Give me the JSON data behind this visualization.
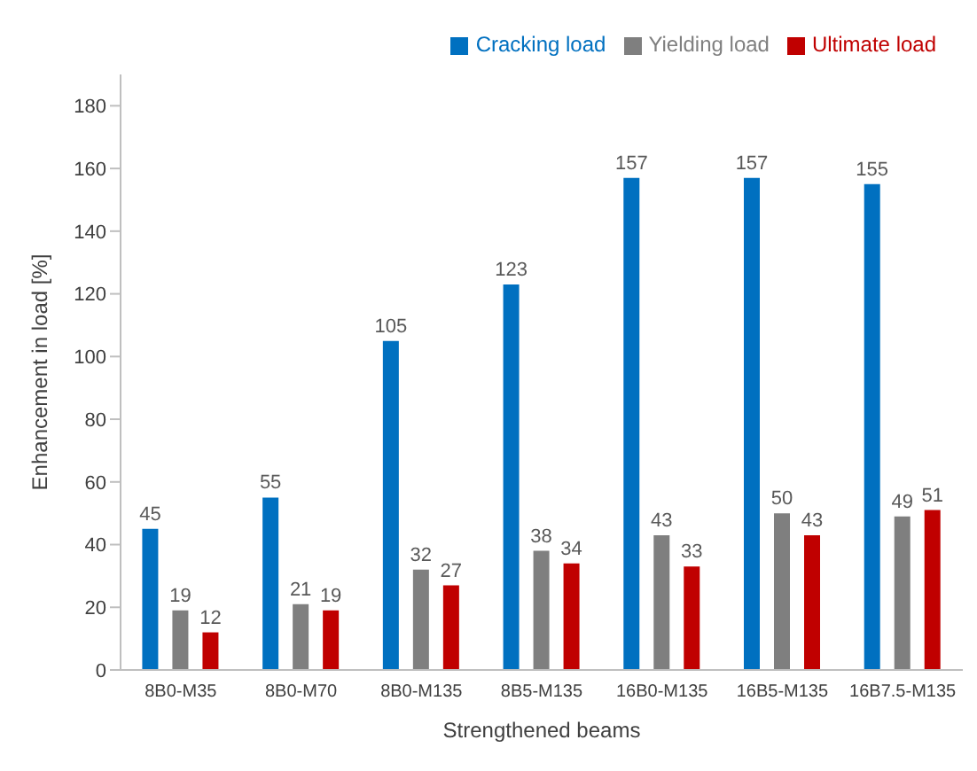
{
  "chart_data": {
    "type": "bar",
    "xlabel": "Strengthened beams",
    "ylabel": "Enhancement in load [%]",
    "categories": [
      "8B0-M35",
      "8B0-M70",
      "8B0-M135",
      "8B5-M135",
      "16B0-M135",
      "16B5-M135",
      "16B7.5-M135"
    ],
    "series": [
      {
        "name": "Cracking load",
        "color": "#0070c0",
        "values": [
          45,
          55,
          105,
          123,
          157,
          157,
          155
        ]
      },
      {
        "name": "Yielding load",
        "color": "#7f7f7f",
        "values": [
          19,
          21,
          32,
          38,
          43,
          50,
          49
        ]
      },
      {
        "name": "Ultimate load",
        "color": "#c00000",
        "values": [
          12,
          19,
          27,
          34,
          33,
          43,
          51
        ]
      }
    ],
    "ylim": [
      0,
      190
    ],
    "yticks": [
      0,
      20,
      40,
      60,
      80,
      100,
      120,
      140,
      160,
      180
    ],
    "grid": false,
    "legend": "top right",
    "data_labels": true
  }
}
